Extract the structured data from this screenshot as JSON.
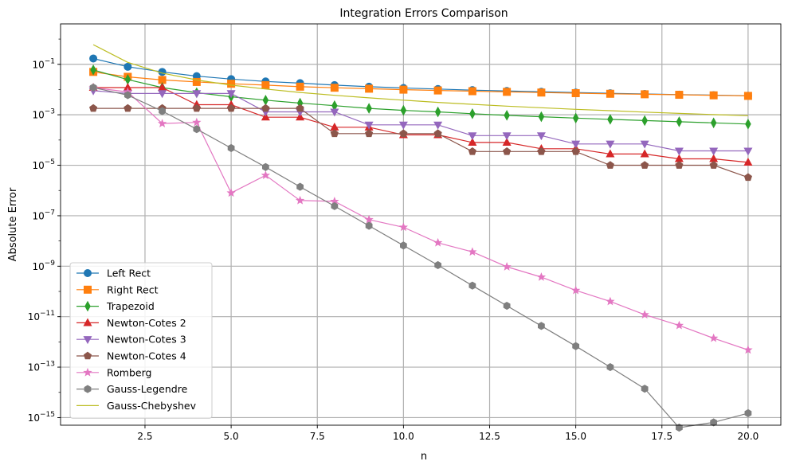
{
  "chart_data": {
    "type": "line",
    "title": "Integration Errors Comparison",
    "xlabel": "n",
    "ylabel": "Absolute Error",
    "xscale": "linear",
    "yscale": "log",
    "xlim": [
      0.05,
      20.95
    ],
    "ylim": [
      5e-16,
      4
    ],
    "x_ticks": [
      2.5,
      5.0,
      7.5,
      10.0,
      12.5,
      15.0,
      17.5,
      20.0
    ],
    "x_tick_labels": [
      "2.5",
      "5.0",
      "7.5",
      "10.0",
      "12.5",
      "15.0",
      "17.5",
      "20.0"
    ],
    "y_tick_exponents": [
      -15,
      -13,
      -11,
      -9,
      -7,
      -5,
      -3,
      -1
    ],
    "y_tick_base": "10",
    "grid": true,
    "legend_position": "lower-left",
    "series": [
      {
        "name": "Left Rect",
        "color": "#1f77b4",
        "marker": "circle",
        "x": [
          1,
          2,
          3,
          4,
          5,
          6,
          7,
          8,
          9,
          10,
          11,
          12,
          13,
          14,
          15,
          16,
          17,
          18,
          19,
          20
        ],
        "values": [
          0.17,
          0.08,
          0.05,
          0.034,
          0.026,
          0.021,
          0.018,
          0.015,
          0.013,
          0.0115,
          0.0105,
          0.0095,
          0.0088,
          0.0082,
          0.0076,
          0.0071,
          0.0067,
          0.0063,
          0.006,
          0.0057
        ]
      },
      {
        "name": "Right Rect",
        "color": "#ff7f0e",
        "marker": "square",
        "x": [
          1,
          2,
          3,
          4,
          5,
          6,
          7,
          8,
          9,
          10,
          11,
          12,
          13,
          14,
          15,
          16,
          17,
          18,
          19,
          20
        ],
        "values": [
          0.05,
          0.032,
          0.024,
          0.02,
          0.017,
          0.015,
          0.013,
          0.0118,
          0.0108,
          0.0099,
          0.0092,
          0.0086,
          0.0081,
          0.0076,
          0.0072,
          0.0068,
          0.0065,
          0.0062,
          0.0059,
          0.0056
        ]
      },
      {
        "name": "Trapezoid",
        "color": "#2ca02c",
        "marker": "thin-diamond",
        "x": [
          1,
          2,
          3,
          4,
          5,
          6,
          7,
          8,
          9,
          10,
          11,
          12,
          13,
          14,
          15,
          16,
          17,
          18,
          19,
          20
        ],
        "values": [
          0.06,
          0.025,
          0.012,
          0.0075,
          0.0052,
          0.0038,
          0.0029,
          0.0023,
          0.0018,
          0.0015,
          0.0013,
          0.0011,
          0.00095,
          0.00084,
          0.00074,
          0.00066,
          0.00059,
          0.00053,
          0.00048,
          0.00043
        ]
      },
      {
        "name": "Newton-Cotes 2",
        "color": "#d62728",
        "marker": "triangle-up",
        "x": [
          1,
          2,
          3,
          4,
          5,
          6,
          7,
          8,
          9,
          10,
          11,
          12,
          13,
          14,
          15,
          16,
          17,
          18,
          19,
          20
        ],
        "values": [
          0.012,
          0.012,
          0.012,
          0.0025,
          0.0025,
          0.0008,
          0.0008,
          0.00032,
          0.00032,
          0.00016,
          0.00016,
          8e-05,
          8e-05,
          4.5e-05,
          4.5e-05,
          2.8e-05,
          2.8e-05,
          1.8e-05,
          1.8e-05,
          1.3e-05
        ]
      },
      {
        "name": "Newton-Cotes 3",
        "color": "#9467bd",
        "marker": "triangle-down",
        "x": [
          1,
          2,
          3,
          4,
          5,
          6,
          7,
          8,
          9,
          10,
          11,
          12,
          13,
          14,
          15,
          16,
          17,
          18,
          19,
          20
        ],
        "values": [
          0.009,
          0.007,
          0.007,
          0.007,
          0.007,
          0.0013,
          0.0013,
          0.0013,
          0.0004,
          0.0004,
          0.0004,
          0.00015,
          0.00015,
          0.00015,
          7e-05,
          7e-05,
          7e-05,
          3.7e-05,
          3.7e-05,
          3.7e-05
        ]
      },
      {
        "name": "Newton-Cotes 4",
        "color": "#8c564b",
        "marker": "pentagon",
        "x": [
          1,
          2,
          3,
          4,
          5,
          6,
          7,
          8,
          9,
          10,
          11,
          12,
          13,
          14,
          15,
          16,
          17,
          18,
          19,
          20
        ],
        "values": [
          0.0018,
          0.0018,
          0.0018,
          0.0018,
          0.0018,
          0.0018,
          0.0018,
          0.00018,
          0.00018,
          0.00018,
          0.00018,
          3.5e-05,
          3.5e-05,
          3.5e-05,
          3.5e-05,
          1e-05,
          1e-05,
          1e-05,
          1e-05,
          3.3e-06
        ]
      },
      {
        "name": "Romberg",
        "color": "#e377c2",
        "marker": "star",
        "x": [
          1,
          2,
          3,
          4,
          5,
          6,
          7,
          8,
          9,
          10,
          11,
          12,
          13,
          14,
          15,
          16,
          17,
          18,
          19,
          20
        ],
        "values": [
          0.012,
          0.008,
          0.00045,
          0.0005,
          8e-07,
          4e-06,
          4e-07,
          3.7e-07,
          7e-08,
          3.5e-08,
          8.5e-09,
          3.7e-09,
          9.5e-10,
          3.7e-10,
          1.1e-10,
          4e-11,
          1.2e-11,
          4.5e-12,
          1.4e-12,
          4.8e-13
        ]
      },
      {
        "name": "Gauss-Legendre",
        "color": "#7f7f7f",
        "marker": "hexagon",
        "x": [
          1,
          2,
          3,
          4,
          5,
          6,
          7,
          8,
          9,
          10,
          11,
          12,
          13,
          14,
          15,
          16,
          17,
          18,
          19,
          20
        ],
        "values": [
          0.012,
          0.006,
          0.0014,
          0.00027,
          4.8e-05,
          8.5e-06,
          1.4e-06,
          2.4e-07,
          4e-08,
          6.6e-09,
          1.1e-09,
          1.7e-10,
          2.7e-11,
          4.3e-12,
          6.8e-13,
          1e-13,
          1.4e-14,
          4e-16,
          6.5e-16,
          1.5e-15
        ]
      },
      {
        "name": "Gauss-Chebyshev",
        "color": "#bcbd22",
        "marker": "none",
        "x": [
          1,
          2,
          3,
          4,
          5,
          6,
          7,
          8,
          9,
          10,
          11,
          12,
          13,
          14,
          15,
          16,
          17,
          18,
          19,
          20
        ],
        "values": [
          0.6,
          0.12,
          0.045,
          0.024,
          0.015,
          0.0105,
          0.0077,
          0.0059,
          0.0047,
          0.0038,
          0.0031,
          0.0026,
          0.0022,
          0.0019,
          0.00165,
          0.00145,
          0.00128,
          0.00114,
          0.00102,
          0.00092
        ]
      }
    ]
  }
}
